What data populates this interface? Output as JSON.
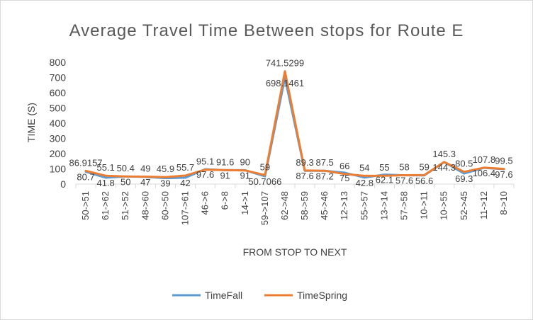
{
  "chart_data": {
    "type": "line",
    "title": "Average Travel Time Between stops for Route E",
    "xlabel": "FROM STOP TO NEXT",
    "ylabel": "TIME (S)",
    "ylim": [
      0,
      800
    ],
    "yticks": [
      0,
      100,
      200,
      300,
      400,
      500,
      600,
      700,
      800
    ],
    "categories": [
      "50->51",
      "61->62",
      "51->52",
      "48->60",
      "60->50",
      "107->61",
      "46->6",
      "6->8",
      "14->1",
      "59->107",
      "62->48",
      "58->59",
      "45->46",
      "12->13",
      "55->57",
      "13->14",
      "57->58",
      "10->11",
      "10->55",
      "52->45",
      "11->12",
      "8->10"
    ],
    "series": [
      {
        "name": "TimeFall",
        "color": "#5b9bd5",
        "values": [
          80.7,
          41.8,
          50,
          47,
          39,
          42,
          97.6,
          91,
          91,
          50.7,
          698.1461,
          87.6,
          87.2,
          75,
          42.8,
          62.1,
          57.6,
          56.6,
          144.3,
          69.3,
          106.4,
          97.6
        ],
        "labels": [
          "80.7",
          "41.8",
          "50",
          "47",
          "39",
          "42",
          "97.6",
          "91",
          "91",
          "50.7066",
          "698.1461",
          "87.6",
          "87.2",
          "75",
          "42.8",
          "62.1",
          "57.6",
          "56.6",
          "144.3",
          "69.3",
          "106.4",
          "97.6"
        ]
      },
      {
        "name": "TimeSpring",
        "color": "#ed7d31",
        "values": [
          86.9,
          55.1,
          50.4,
          49,
          45.9,
          55.7,
          95.1,
          91.6,
          90,
          59,
          741.5299,
          89.3,
          87.5,
          66,
          54,
          55,
          58,
          59,
          145.3,
          80.5,
          107.8,
          99.5
        ],
        "labels": [
          "86.9157",
          "55.1",
          "50.4",
          "49",
          "45.9",
          "55.7",
          "95.1",
          "91.6",
          "90",
          "59",
          "741.5299",
          "89.3",
          "87.5",
          "66",
          "54",
          "55",
          "58",
          "59",
          "145.3",
          "80.5",
          "107.8",
          "99.5"
        ]
      }
    ],
    "grid": false,
    "legend": "bottom"
  }
}
